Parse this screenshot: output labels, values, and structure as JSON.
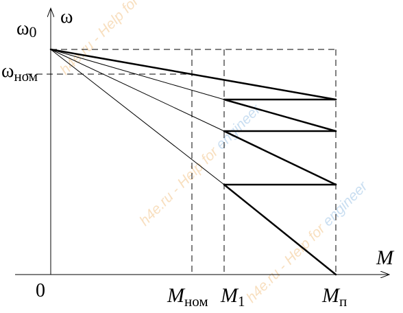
{
  "axes": {
    "x_label": "M",
    "y_label": "ω",
    "origin_label": "0"
  },
  "y_ticks": {
    "omega0_main": "ω",
    "omega0_sub": "0",
    "omeganom_main": "ω",
    "omeganom_sub": "ном"
  },
  "x_ticks": {
    "mnom_main": "M",
    "mnom_sub": "ном",
    "m1_main": "M",
    "m1_sub": "1",
    "mp_main": "M",
    "mp_sub": "п"
  },
  "watermark": {
    "text_full": "h4e.ru - Help for engineer",
    "prefix": "h4e.ru - ",
    "mid": "Help for ",
    "end": "engineer",
    "colors": {
      "prefix": "#f2c48a",
      "mid": "#f2c48a",
      "end": "#9cc3e6"
    }
  }
}
